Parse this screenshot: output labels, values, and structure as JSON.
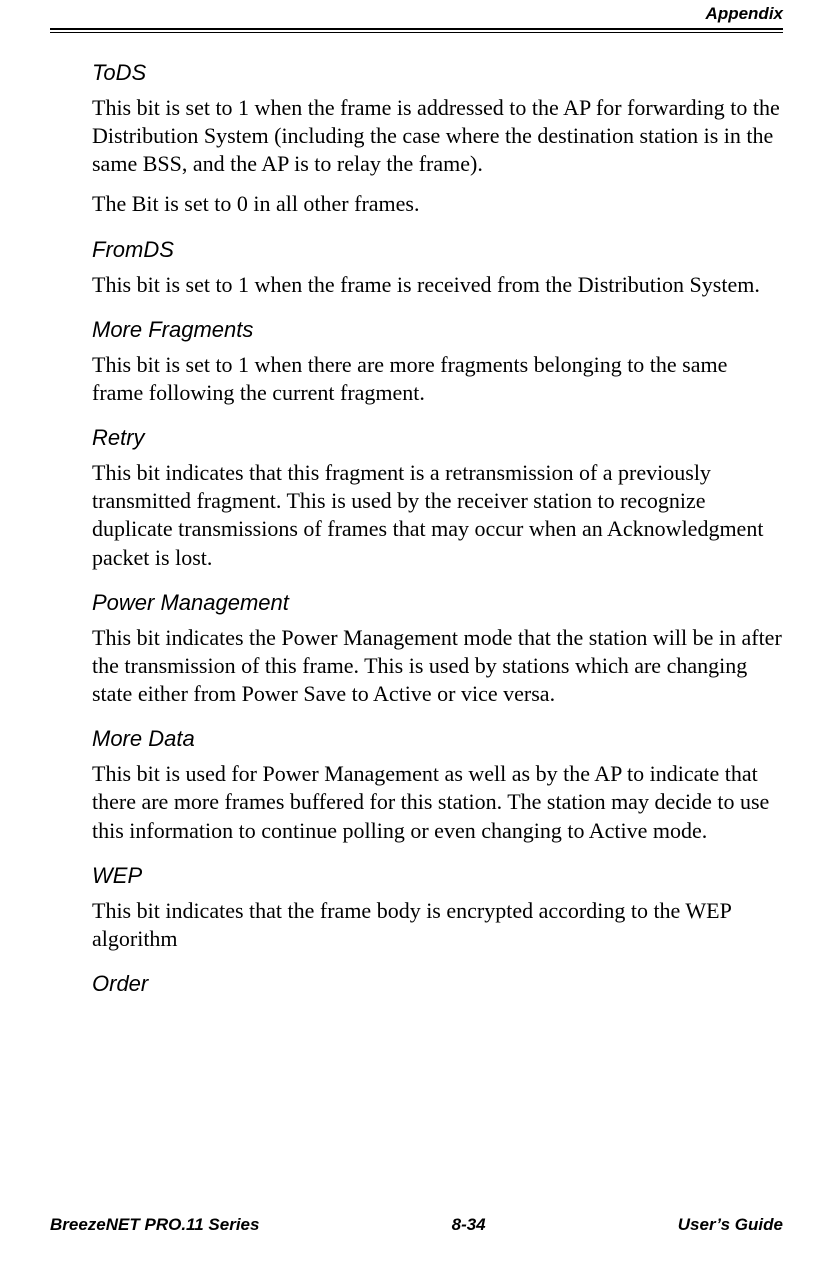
{
  "header": {
    "label": "Appendix"
  },
  "sections": {
    "tods": {
      "heading": "ToDS",
      "para1": "This bit is set to 1 when the frame is addressed to the AP for forwarding to the Distribution System (including the case where the destination station is in the same BSS, and the AP is to relay the frame).",
      "para2": "The Bit is set to 0 in all other frames."
    },
    "fromds": {
      "heading": "FromDS",
      "para1": "This bit is set to 1 when the frame is received from the Distribution System."
    },
    "morefrag": {
      "heading": "More Fragments",
      "para1": "This bit is set to 1 when there are more fragments belonging to the same frame following the current fragment."
    },
    "retry": {
      "heading": "Retry",
      "para1": "This bit indicates that this fragment is a retransmission of a previously transmitted fragment. This is used by the receiver station to recognize duplicate transmissions of frames that may occur when an Acknowledgment packet is lost."
    },
    "power": {
      "heading": "Power Management",
      "para1": "This bit indicates the Power Management mode that the station will be in after the transmission of this frame. This is used by stations which are changing state either from Power Save to Active or vice versa."
    },
    "moredata": {
      "heading": "More Data",
      "para1": "This bit is used for Power Management as well as by the AP to indicate that there are more frames buffered for this station. The station may decide to use this information to continue polling or even changing to Active mode."
    },
    "wep": {
      "heading": "WEP",
      "para1": "This bit indicates that the frame body is encrypted according to the WEP algorithm"
    },
    "order": {
      "heading": "Order"
    }
  },
  "footer": {
    "left": "BreezeNET PRO.11 Series",
    "center": "8-34",
    "right": "User’s Guide"
  }
}
